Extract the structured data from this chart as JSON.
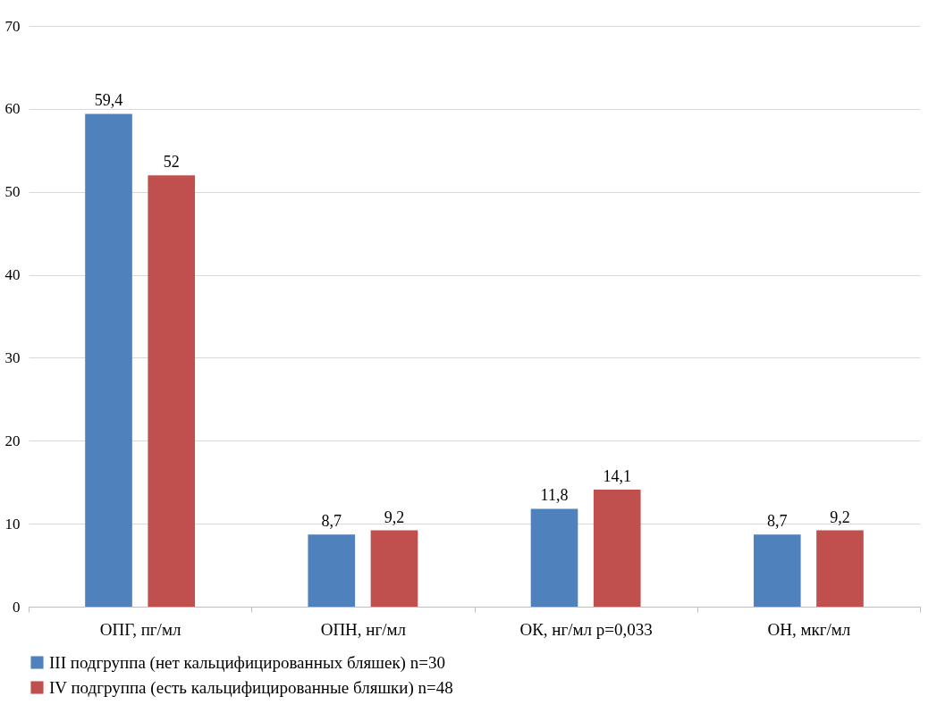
{
  "chart_data": {
    "type": "bar",
    "categories": [
      "ОПГ, пг/мл",
      "ОПН, нг/мл",
      "ОК, нг/мл p=0,033",
      "ОН, мкг/мл"
    ],
    "series": [
      {
        "name": "III подгруппа  (нет кальцифицированных бляшек) n=30",
        "color": "#4f81bd",
        "values": [
          59.4,
          8.7,
          11.8,
          8.7
        ],
        "value_labels": [
          "59,4",
          "8,7",
          "11,8",
          "8,7"
        ]
      },
      {
        "name": "IV подгруппа (есть кальцифицированные бляшки) n=48",
        "color": "#c0504d",
        "values": [
          52,
          9.2,
          14.1,
          9.2
        ],
        "value_labels": [
          "52",
          "9,2",
          "14,1",
          "9,2"
        ]
      }
    ],
    "ylim": [
      0,
      70
    ],
    "yticks": [
      0,
      10,
      20,
      30,
      40,
      50,
      60,
      70
    ],
    "grid": "y",
    "legend": "bottom"
  }
}
